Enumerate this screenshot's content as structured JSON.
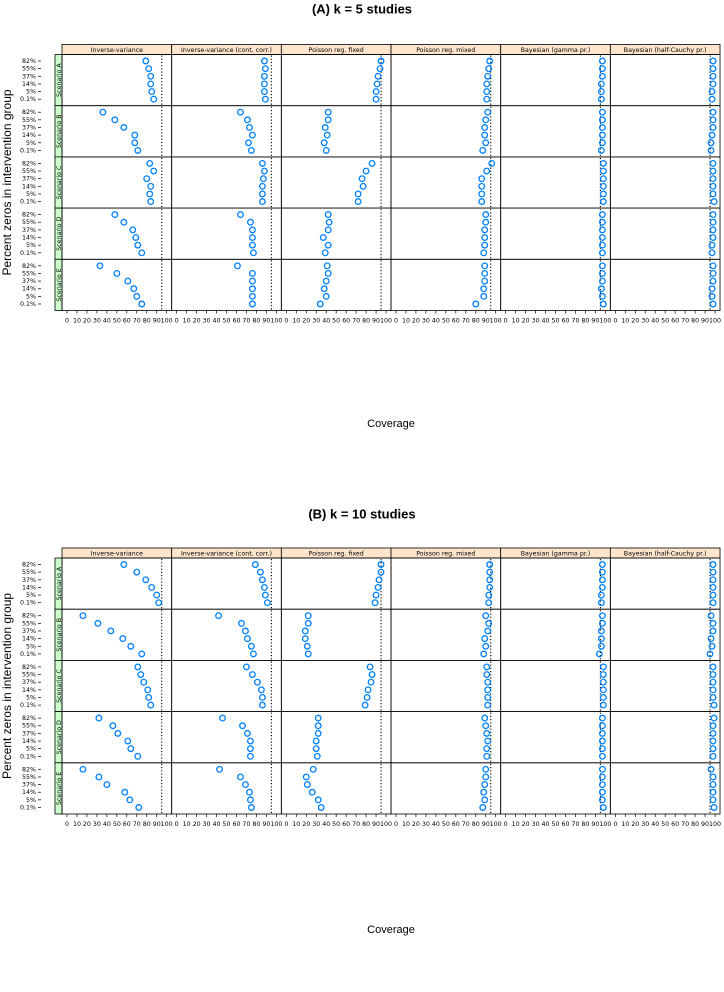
{
  "colors": {
    "top_strip": "#FFE5CC",
    "side_strip": "#CCFFCC",
    "point": "#0080FF",
    "reference": "#000000"
  },
  "chart_data": [
    {
      "type": "scatter",
      "title": "(A) k = 5 studies",
      "xlabel": "Coverage",
      "ylabel": "Percent zeros in intervention group",
      "xlim": [
        -5,
        105
      ],
      "x_ticks": [
        0,
        10,
        20,
        30,
        40,
        50,
        60,
        70,
        80,
        90,
        100
      ],
      "reference_line": 95,
      "grid": false,
      "methods": [
        "Inverse-variance",
        "Inverse-variance (cont. corr.)",
        "Poisson reg. fixed",
        "Poisson reg. mixed",
        "Bayesian (gamma pr.)",
        "Bayesian (half-Cauchy pr.)"
      ],
      "scenarios": [
        "Scenario A",
        "Scenario B",
        "Scenario C",
        "Scenario D",
        "Scenario E"
      ],
      "zero_levels": [
        "82%",
        "55%",
        "37%",
        "14%",
        "5%",
        "0.1%"
      ],
      "values": [
        [
          [
            79,
            82,
            84,
            84,
            85,
            87
          ],
          [
            88,
            89,
            88,
            88,
            88,
            89
          ],
          [
            95,
            94,
            92,
            91,
            90,
            90
          ],
          [
            94,
            93,
            92,
            91,
            91,
            91
          ],
          [
            97,
            97,
            97,
            96,
            96,
            96
          ],
          [
            98,
            98,
            98,
            98,
            97,
            97
          ]
        ],
        [
          [
            36,
            48,
            57,
            68,
            68,
            71
          ],
          [
            64,
            71,
            73,
            76,
            72,
            75
          ],
          [
            42,
            42,
            39,
            41,
            38,
            40
          ],
          [
            92,
            90,
            89,
            89,
            90,
            87
          ],
          [
            97,
            97,
            97,
            97,
            97,
            96
          ],
          [
            98,
            98,
            98,
            97,
            96,
            96
          ]
        ],
        [
          [
            83,
            87,
            80,
            84,
            83,
            84
          ],
          [
            86,
            88,
            87,
            86,
            86,
            86
          ],
          [
            86,
            80,
            76,
            77,
            72,
            72
          ],
          [
            96,
            91,
            86,
            86,
            86,
            86
          ],
          [
            98,
            98,
            98,
            98,
            98,
            98
          ],
          [
            98,
            98,
            98,
            98,
            98,
            99
          ]
        ],
        [
          [
            48,
            57,
            66,
            69,
            71,
            75
          ],
          [
            64,
            74,
            76,
            76,
            76,
            77
          ],
          [
            42,
            43,
            42,
            37,
            42,
            39
          ],
          [
            90,
            90,
            89,
            89,
            89,
            88
          ],
          [
            97,
            97,
            97,
            97,
            97,
            97
          ],
          [
            98,
            98,
            98,
            98,
            97,
            97
          ]
        ],
        [
          [
            33,
            50,
            61,
            67,
            70,
            75
          ],
          [
            61,
            76,
            76,
            76,
            76,
            76
          ],
          [
            41,
            42,
            40,
            38,
            40,
            34
          ],
          [
            89,
            89,
            89,
            88,
            88,
            80
          ],
          [
            97,
            97,
            97,
            96,
            97,
            98
          ],
          [
            98,
            98,
            98,
            97,
            97,
            98
          ]
        ]
      ]
    },
    {
      "type": "scatter",
      "title": "(B) k = 10 studies",
      "xlabel": "Coverage",
      "ylabel": "Percent zeros in intervention group",
      "xlim": [
        -5,
        105
      ],
      "x_ticks": [
        0,
        10,
        20,
        30,
        40,
        50,
        60,
        70,
        80,
        90,
        100
      ],
      "reference_line": 95,
      "grid": false,
      "methods": [
        "Inverse-variance",
        "Inverse-variance (cont. corr.)",
        "Poisson reg. fixed",
        "Poisson reg. mixed",
        "Bayesian (gamma pr.)",
        "Bayesian (half-Cauchy pr.)"
      ],
      "scenarios": [
        "Scenario A",
        "Scenario B",
        "Scenario C",
        "Scenario D",
        "Scenario E"
      ],
      "zero_levels": [
        "82%",
        "55%",
        "37%",
        "14%",
        "5%",
        "0.1%"
      ],
      "values": [
        [
          [
            57,
            70,
            79,
            85,
            90,
            92
          ],
          [
            79,
            84,
            86,
            88,
            89,
            91
          ],
          [
            95,
            95,
            93,
            92,
            90,
            89
          ],
          [
            94,
            94,
            94,
            94,
            93,
            93
          ],
          [
            97,
            97,
            97,
            97,
            96,
            96
          ],
          [
            98,
            98,
            98,
            98,
            98,
            98
          ]
        ],
        [
          [
            16,
            31,
            44,
            56,
            64,
            75
          ],
          [
            42,
            65,
            69,
            71,
            75,
            77
          ],
          [
            22,
            22,
            19,
            19,
            21,
            22
          ],
          [
            90,
            93,
            92,
            89,
            90,
            88
          ],
          [
            97,
            97,
            96,
            96,
            96,
            94
          ],
          [
            96,
            98,
            98,
            96,
            97,
            95
          ]
        ],
        [
          [
            71,
            74,
            77,
            81,
            82,
            84
          ],
          [
            70,
            76,
            81,
            85,
            86,
            86
          ],
          [
            84,
            86,
            85,
            82,
            81,
            79
          ],
          [
            91,
            91,
            92,
            92,
            92,
            92
          ],
          [
            98,
            98,
            98,
            98,
            98,
            98
          ],
          [
            98,
            98,
            98,
            98,
            98,
            99
          ]
        ],
        [
          [
            32,
            46,
            51,
            61,
            64,
            71
          ],
          [
            46,
            66,
            71,
            74,
            74,
            74
          ],
          [
            32,
            32,
            32,
            30,
            30,
            31
          ],
          [
            89,
            90,
            91,
            92,
            91,
            91
          ],
          [
            97,
            97,
            97,
            97,
            97,
            97
          ],
          [
            99,
            98,
            98,
            98,
            98,
            98
          ]
        ],
        [
          [
            16,
            32,
            40,
            58,
            63,
            72
          ],
          [
            43,
            64,
            69,
            73,
            74,
            75
          ],
          [
            27,
            20,
            21,
            26,
            32,
            35
          ],
          [
            90,
            90,
            89,
            88,
            89,
            87
          ],
          [
            97,
            97,
            97,
            97,
            97,
            98
          ],
          [
            96,
            98,
            98,
            98,
            98,
            99
          ]
        ]
      ]
    }
  ]
}
